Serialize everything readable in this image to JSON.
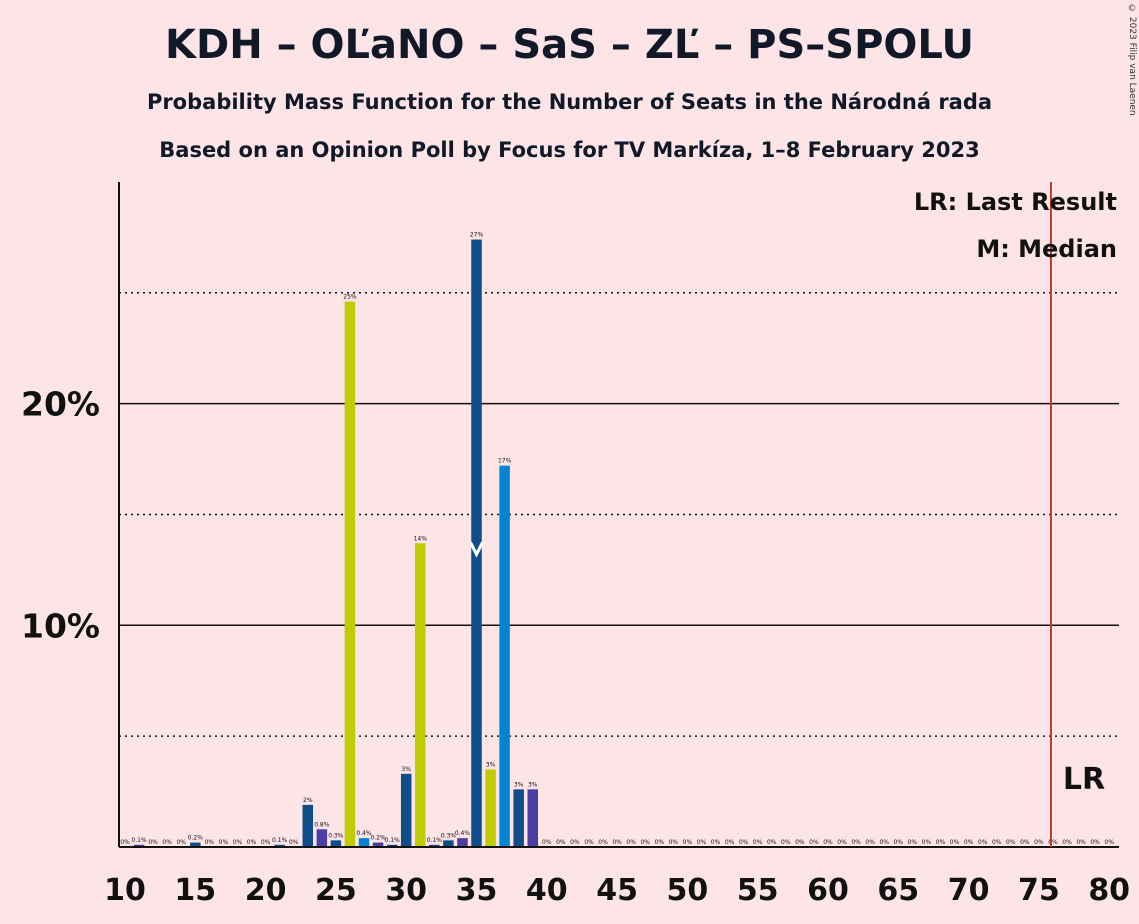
{
  "title": "KDH – OĽaNO – SaS – ZĽ – PS–SPOLU",
  "subtitle": "Probability Mass Function for the Number of Seats in the Národná rada",
  "subtitle2": "Based on an Opinion Poll by Focus for TV Markíza, 1–8 February 2023",
  "copyright": "© 2023 Filip van Laenen",
  "legend": {
    "last_result": "LR: Last Result",
    "median": "M: Median"
  },
  "lr_marker_label": "LR",
  "colors": {
    "background": "#FDE4E7",
    "kdh": "#0F4C8A",
    "olano": "#BFCC00",
    "sas": "#0084D1",
    "zl": "#4B3DA3",
    "last_result_line": "#C0392B"
  },
  "chart_data": {
    "type": "bar",
    "xlabel": "",
    "ylabel": "",
    "xlim": [
      10,
      80
    ],
    "ylim": [
      0,
      30
    ],
    "x_ticks": [
      10,
      15,
      20,
      25,
      30,
      35,
      40,
      45,
      50,
      55,
      60,
      65,
      70,
      75,
      80
    ],
    "y_ticks_labeled": [
      {
        "value": 10,
        "label": "10%"
      },
      {
        "value": 20,
        "label": "20%"
      }
    ],
    "y_gridlines_solid": [
      10,
      20
    ],
    "y_gridlines_dotted": [
      5,
      15,
      25
    ],
    "median": 35,
    "last_result": 76,
    "bars": [
      {
        "seats": 10,
        "value": 0.0,
        "label": "0%",
        "color": "#0F4C8A"
      },
      {
        "seats": 11,
        "value": 0.1,
        "label": "0.1%",
        "color": "#4B3DA3"
      },
      {
        "seats": 12,
        "value": 0.0,
        "label": "0%",
        "color": "#0F4C8A"
      },
      {
        "seats": 13,
        "value": 0.0,
        "label": "0%",
        "color": "#0F4C8A"
      },
      {
        "seats": 14,
        "value": 0.0,
        "label": "0%",
        "color": "#0F4C8A"
      },
      {
        "seats": 15,
        "value": 0.2,
        "label": "0.2%",
        "color": "#0F4C8A"
      },
      {
        "seats": 16,
        "value": 0.0,
        "label": "0%",
        "color": "#0F4C8A"
      },
      {
        "seats": 17,
        "value": 0.0,
        "label": "0%",
        "color": "#0F4C8A"
      },
      {
        "seats": 18,
        "value": 0.0,
        "label": "0%",
        "color": "#0F4C8A"
      },
      {
        "seats": 19,
        "value": 0.0,
        "label": "0%",
        "color": "#0F4C8A"
      },
      {
        "seats": 20,
        "value": 0.0,
        "label": "0%",
        "color": "#0F4C8A"
      },
      {
        "seats": 21,
        "value": 0.1,
        "label": "0.1%",
        "color": "#0F4C8A"
      },
      {
        "seats": 22,
        "value": 0.0,
        "label": "0%",
        "color": "#0F4C8A"
      },
      {
        "seats": 23,
        "value": 1.9,
        "label": "2%",
        "color": "#0F4C8A"
      },
      {
        "seats": 24,
        "value": 0.8,
        "label": "0.8%",
        "color": "#4B3DA3"
      },
      {
        "seats": 25,
        "value": 0.3,
        "label": "0.3%",
        "color": "#0F4C8A"
      },
      {
        "seats": 26,
        "value": 24.6,
        "label": "25%",
        "color": "#BFCC00"
      },
      {
        "seats": 27,
        "value": 0.4,
        "label": "0.4%",
        "color": "#0084D1"
      },
      {
        "seats": 28,
        "value": 0.2,
        "label": "0.2%",
        "color": "#4B3DA3"
      },
      {
        "seats": 29,
        "value": 0.1,
        "label": "0.1%",
        "color": "#0F4C8A"
      },
      {
        "seats": 30,
        "value": 3.3,
        "label": "3%",
        "color": "#0F4C8A"
      },
      {
        "seats": 31,
        "value": 13.7,
        "label": "14%",
        "color": "#BFCC00"
      },
      {
        "seats": 32,
        "value": 0.1,
        "label": "0.1%",
        "color": "#0F4C8A"
      },
      {
        "seats": 33,
        "value": 0.3,
        "label": "0.3%",
        "color": "#0F4C8A"
      },
      {
        "seats": 34,
        "value": 0.4,
        "label": "0.4%",
        "color": "#4B3DA3"
      },
      {
        "seats": 35,
        "value": 27.4,
        "label": "27%",
        "color": "#0F4C8A"
      },
      {
        "seats": 36,
        "value": 3.5,
        "label": "3%",
        "color": "#BFCC00"
      },
      {
        "seats": 37,
        "value": 17.2,
        "label": "17%",
        "color": "#0084D1"
      },
      {
        "seats": 38,
        "value": 2.6,
        "label": "3%",
        "color": "#0F4C8A"
      },
      {
        "seats": 39,
        "value": 2.6,
        "label": "3%",
        "color": "#4B3DA3"
      },
      {
        "seats": 40,
        "value": 0.0,
        "label": "0%",
        "color": "#0F4C8A"
      },
      {
        "seats": 41,
        "value": 0.0,
        "label": "0%",
        "color": "#0F4C8A"
      },
      {
        "seats": 42,
        "value": 0.0,
        "label": "0%",
        "color": "#0F4C8A"
      },
      {
        "seats": 43,
        "value": 0.0,
        "label": "0%",
        "color": "#0F4C8A"
      },
      {
        "seats": 44,
        "value": 0.0,
        "label": "0%",
        "color": "#0F4C8A"
      },
      {
        "seats": 45,
        "value": 0.0,
        "label": "0%",
        "color": "#0F4C8A"
      },
      {
        "seats": 46,
        "value": 0.0,
        "label": "0%",
        "color": "#0F4C8A"
      },
      {
        "seats": 47,
        "value": 0.0,
        "label": "0%",
        "color": "#0F4C8A"
      },
      {
        "seats": 48,
        "value": 0.0,
        "label": "0%",
        "color": "#0F4C8A"
      },
      {
        "seats": 49,
        "value": 0.0,
        "label": "0%",
        "color": "#0F4C8A"
      },
      {
        "seats": 50,
        "value": 0.0,
        "label": "0%",
        "color": "#0F4C8A"
      },
      {
        "seats": 51,
        "value": 0.0,
        "label": "0%",
        "color": "#0F4C8A"
      },
      {
        "seats": 52,
        "value": 0.0,
        "label": "0%",
        "color": "#0F4C8A"
      },
      {
        "seats": 53,
        "value": 0.0,
        "label": "0%",
        "color": "#0F4C8A"
      },
      {
        "seats": 54,
        "value": 0.0,
        "label": "0%",
        "color": "#0F4C8A"
      },
      {
        "seats": 55,
        "value": 0.0,
        "label": "0%",
        "color": "#0F4C8A"
      },
      {
        "seats": 56,
        "value": 0.0,
        "label": "0%",
        "color": "#0F4C8A"
      },
      {
        "seats": 57,
        "value": 0.0,
        "label": "0%",
        "color": "#0F4C8A"
      },
      {
        "seats": 58,
        "value": 0.0,
        "label": "0%",
        "color": "#0F4C8A"
      },
      {
        "seats": 59,
        "value": 0.0,
        "label": "0%",
        "color": "#0F4C8A"
      },
      {
        "seats": 60,
        "value": 0.0,
        "label": "0%",
        "color": "#0F4C8A"
      },
      {
        "seats": 61,
        "value": 0.0,
        "label": "0%",
        "color": "#0F4C8A"
      },
      {
        "seats": 62,
        "value": 0.0,
        "label": "0%",
        "color": "#0F4C8A"
      },
      {
        "seats": 63,
        "value": 0.0,
        "label": "0%",
        "color": "#0F4C8A"
      },
      {
        "seats": 64,
        "value": 0.0,
        "label": "0%",
        "color": "#0F4C8A"
      },
      {
        "seats": 65,
        "value": 0.0,
        "label": "0%",
        "color": "#0F4C8A"
      },
      {
        "seats": 66,
        "value": 0.0,
        "label": "0%",
        "color": "#0F4C8A"
      },
      {
        "seats": 67,
        "value": 0.0,
        "label": "0%",
        "color": "#0F4C8A"
      },
      {
        "seats": 68,
        "value": 0.0,
        "label": "0%",
        "color": "#0F4C8A"
      },
      {
        "seats": 69,
        "value": 0.0,
        "label": "0%",
        "color": "#0F4C8A"
      },
      {
        "seats": 70,
        "value": 0.0,
        "label": "0%",
        "color": "#0F4C8A"
      },
      {
        "seats": 71,
        "value": 0.0,
        "label": "0%",
        "color": "#0F4C8A"
      },
      {
        "seats": 72,
        "value": 0.0,
        "label": "0%",
        "color": "#0F4C8A"
      },
      {
        "seats": 73,
        "value": 0.0,
        "label": "0%",
        "color": "#0F4C8A"
      },
      {
        "seats": 74,
        "value": 0.0,
        "label": "0%",
        "color": "#0F4C8A"
      },
      {
        "seats": 75,
        "value": 0.0,
        "label": "0%",
        "color": "#0F4C8A"
      },
      {
        "seats": 76,
        "value": 0.0,
        "label": "0%",
        "color": "#0F4C8A"
      },
      {
        "seats": 77,
        "value": 0.0,
        "label": "0%",
        "color": "#0F4C8A"
      },
      {
        "seats": 78,
        "value": 0.0,
        "label": "0%",
        "color": "#0F4C8A"
      },
      {
        "seats": 79,
        "value": 0.0,
        "label": "0%",
        "color": "#0F4C8A"
      },
      {
        "seats": 80,
        "value": 0.0,
        "label": "0%",
        "color": "#0F4C8A"
      }
    ]
  }
}
